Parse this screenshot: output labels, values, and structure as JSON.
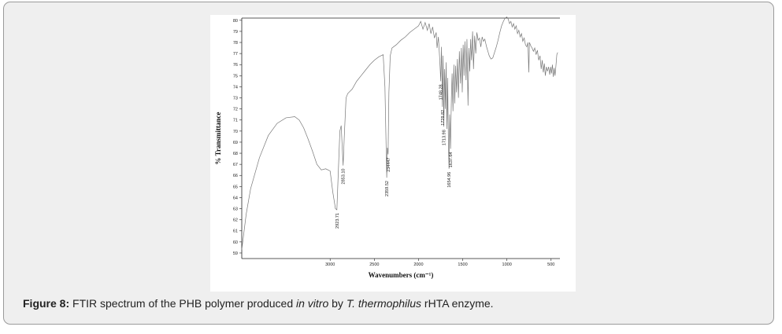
{
  "caption": {
    "label": "Figure 8:",
    "part1": " FTIR spectrum of the PHB polymer produced ",
    "italic1": "in vitro",
    "part2": " by ",
    "italic2": "T. thermophilus",
    "part3": " rHTA enzyme."
  },
  "chart_data": {
    "type": "line",
    "xlabel": "Wavenumbers (cm⁻¹)",
    "ylabel": "% Transmittance",
    "xlim": [
      4000,
      400
    ],
    "ylim": [
      58.5,
      80.2
    ],
    "x_ticks": [
      "3000",
      "2500",
      "2000",
      "1500",
      "1000",
      "500"
    ],
    "y_ticks": [
      "59",
      "60",
      "61",
      "62",
      "63",
      "64",
      "65",
      "66",
      "67",
      "68",
      "69",
      "70",
      "71",
      "72",
      "73",
      "74",
      "75",
      "76",
      "77",
      "78",
      "79",
      "80"
    ],
    "annotations": [
      {
        "label": "2923.71",
        "x": 2923.71,
        "y": 62.9
      },
      {
        "label": "2853.10",
        "x": 2853.1,
        "y": 66.9
      },
      {
        "label": "2359.52",
        "x": 2359.52,
        "y": 65.8
      },
      {
        "label": "234447",
        "x": 2344.47,
        "y": 67.9
      },
      {
        "label": "1748.28",
        "x": 1748.28,
        "y": 74.5
      },
      {
        "label": "1729.82",
        "x": 1729.82,
        "y": 72.2
      },
      {
        "label": "1713.98",
        "x": 1713.98,
        "y": 70.4
      },
      {
        "label": "1654.96",
        "x": 1654.96,
        "y": 66.6
      },
      {
        "label": "1637.64",
        "x": 1637.64,
        "y": 68.4
      }
    ],
    "series": [
      {
        "color": "#777777",
        "points": [
          [
            4000,
            59.3
          ],
          [
            3950,
            62.5
          ],
          [
            3900,
            64.8
          ],
          [
            3800,
            67.6
          ],
          [
            3700,
            69.6
          ],
          [
            3600,
            70.7
          ],
          [
            3500,
            71.2
          ],
          [
            3400,
            71.3
          ],
          [
            3350,
            71.0
          ],
          [
            3300,
            70.3
          ],
          [
            3250,
            69.3
          ],
          [
            3200,
            68.2
          ],
          [
            3150,
            67.0
          ],
          [
            3100,
            66.5
          ],
          [
            3050,
            66.6
          ],
          [
            3000,
            66.4
          ],
          [
            2970,
            64.5
          ],
          [
            2940,
            63.0
          ],
          [
            2923.71,
            62.9
          ],
          [
            2910,
            65.8
          ],
          [
            2890,
            70.0
          ],
          [
            2875,
            70.5
          ],
          [
            2860,
            68.0
          ],
          [
            2853.1,
            66.9
          ],
          [
            2840,
            69.5
          ],
          [
            2820,
            73.0
          ],
          [
            2800,
            73.4
          ],
          [
            2750,
            73.8
          ],
          [
            2700,
            74.5
          ],
          [
            2650,
            75.0
          ],
          [
            2600,
            75.5
          ],
          [
            2550,
            76.0
          ],
          [
            2500,
            76.4
          ],
          [
            2450,
            76.7
          ],
          [
            2400,
            76.9
          ],
          [
            2380,
            74.0
          ],
          [
            2365,
            68.0
          ],
          [
            2359.52,
            65.8
          ],
          [
            2352,
            68.5
          ],
          [
            2344.47,
            67.9
          ],
          [
            2335,
            73.5
          ],
          [
            2320,
            76.8
          ],
          [
            2300,
            77.5
          ],
          [
            2250,
            77.8
          ],
          [
            2200,
            78.2
          ],
          [
            2150,
            78.5
          ],
          [
            2100,
            78.9
          ],
          [
            2050,
            79.2
          ],
          [
            2000,
            79.5
          ],
          [
            1975,
            79.9
          ],
          [
            1950,
            79.2
          ],
          [
            1925,
            79.8
          ],
          [
            1900,
            79.1
          ],
          [
            1880,
            79.7
          ],
          [
            1860,
            78.8
          ],
          [
            1840,
            79.4
          ],
          [
            1820,
            78.4
          ],
          [
            1800,
            78.9
          ],
          [
            1790,
            77.5
          ],
          [
            1775,
            78.5
          ],
          [
            1760,
            76.5
          ],
          [
            1748.28,
            74.5
          ],
          [
            1740,
            77.6
          ],
          [
            1729.82,
            72.2
          ],
          [
            1722,
            76.8
          ],
          [
            1713.98,
            70.4
          ],
          [
            1705,
            75.6
          ],
          [
            1695,
            72.0
          ],
          [
            1688,
            76.2
          ],
          [
            1678,
            70.2
          ],
          [
            1670,
            74.8
          ],
          [
            1662,
            69.0
          ],
          [
            1654.96,
            66.6
          ],
          [
            1648,
            71.5
          ],
          [
            1637.64,
            68.4
          ],
          [
            1628,
            73.0
          ],
          [
            1620,
            75.2
          ],
          [
            1610,
            71.8
          ],
          [
            1600,
            76.0
          ],
          [
            1590,
            72.5
          ],
          [
            1580,
            75.9
          ],
          [
            1570,
            73.5
          ],
          [
            1560,
            76.5
          ],
          [
            1548,
            73.0
          ],
          [
            1538,
            77.2
          ],
          [
            1525,
            74.3
          ],
          [
            1515,
            77.5
          ],
          [
            1505,
            73.5
          ],
          [
            1495,
            77.8
          ],
          [
            1485,
            75.0
          ],
          [
            1475,
            78.1
          ],
          [
            1462,
            74.6
          ],
          [
            1452,
            78.3
          ],
          [
            1440,
            72.3
          ],
          [
            1430,
            77.5
          ],
          [
            1420,
            75.4
          ],
          [
            1410,
            78.3
          ],
          [
            1400,
            76.4
          ],
          [
            1388,
            79.0
          ],
          [
            1378,
            75.6
          ],
          [
            1365,
            78.6
          ],
          [
            1352,
            77.0
          ],
          [
            1340,
            78.9
          ],
          [
            1325,
            78.2
          ],
          [
            1310,
            78.4
          ],
          [
            1295,
            77.6
          ],
          [
            1280,
            78.5
          ],
          [
            1265,
            78.1
          ],
          [
            1250,
            78.3
          ],
          [
            1230,
            77.6
          ],
          [
            1215,
            77.2
          ],
          [
            1200,
            76.8
          ],
          [
            1180,
            76.5
          ],
          [
            1160,
            76.6
          ],
          [
            1140,
            77.1
          ],
          [
            1120,
            77.6
          ],
          [
            1100,
            78.2
          ],
          [
            1080,
            78.9
          ],
          [
            1060,
            79.5
          ],
          [
            1040,
            79.9
          ],
          [
            1020,
            80.2
          ],
          [
            1000,
            80.3
          ],
          [
            985,
            80.1
          ],
          [
            970,
            79.7
          ],
          [
            955,
            79.9
          ],
          [
            940,
            79.4
          ],
          [
            925,
            79.7
          ],
          [
            910,
            79.2
          ],
          [
            895,
            79.5
          ],
          [
            880,
            78.8
          ],
          [
            865,
            79.1
          ],
          [
            850,
            78.5
          ],
          [
            835,
            78.8
          ],
          [
            820,
            78.1
          ],
          [
            805,
            78.4
          ],
          [
            790,
            77.8
          ],
          [
            775,
            77.6
          ],
          [
            762,
            78.0
          ],
          [
            752,
            75.3
          ],
          [
            745,
            78.0
          ],
          [
            730,
            77.7
          ],
          [
            715,
            77.5
          ],
          [
            700,
            77.2
          ],
          [
            685,
            77.5
          ],
          [
            670,
            76.9
          ],
          [
            655,
            77.3
          ],
          [
            640,
            76.4
          ],
          [
            625,
            76.8
          ],
          [
            612,
            75.6
          ],
          [
            600,
            76.4
          ],
          [
            588,
            75.3
          ],
          [
            576,
            76.1
          ],
          [
            565,
            75.0
          ],
          [
            553,
            75.8
          ],
          [
            540,
            75.4
          ],
          [
            528,
            75.8
          ],
          [
            515,
            75.1
          ],
          [
            505,
            75.8
          ],
          [
            495,
            75.2
          ],
          [
            485,
            76.0
          ],
          [
            475,
            74.9
          ],
          [
            465,
            75.7
          ],
          [
            455,
            75.0
          ],
          [
            445,
            75.9
          ],
          [
            435,
            76.9
          ],
          [
            425,
            77.1
          ]
        ]
      }
    ]
  }
}
